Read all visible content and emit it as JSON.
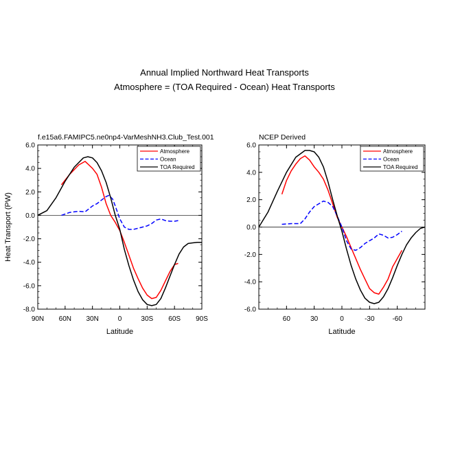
{
  "figure": {
    "title_line1": "Annual Implied Northward Heat Transports",
    "title_line2": "Atmosphere = (TOA Required - Ocean) Heat Transports"
  },
  "chart_data": [
    {
      "type": "line",
      "title": "f.e15a6.FAMIPC5.ne0np4-VarMeshNH3.Club_Test.001",
      "xlabel": "Latitude",
      "ylabel": "Heat Transport (PW)",
      "xlim": [
        90,
        -90
      ],
      "ylim": [
        -8,
        6
      ],
      "xticks": [
        90,
        60,
        30,
        0,
        -30,
        -60,
        -90
      ],
      "xtick_labels": [
        "90N",
        "60N",
        "30N",
        "0",
        "30S",
        "60S",
        "90S"
      ],
      "yticks": [
        -8,
        -6,
        -4,
        -2,
        0,
        2,
        4,
        6
      ],
      "ytick_labels": [
        "-8.0",
        "-6.0",
        "-4.0",
        "-2.0",
        "0.0",
        "2.0",
        "4.0",
        "6.0"
      ],
      "legend_position": "top-right",
      "series": [
        {
          "name": "Atmosphere",
          "color": "#ff0000",
          "dash": "solid",
          "x": [
            64,
            55,
            45,
            38,
            30,
            25,
            20,
            15,
            10,
            5,
            0,
            -5,
            -10,
            -15,
            -20,
            -25,
            -30,
            -35,
            -40,
            -45,
            -50,
            -55,
            -60,
            -64
          ],
          "y": [
            2.6,
            3.5,
            4.3,
            4.6,
            4.0,
            3.5,
            2.4,
            1.0,
            0.0,
            -0.6,
            -1.3,
            -2.3,
            -3.4,
            -4.5,
            -5.4,
            -6.2,
            -6.8,
            -7.1,
            -7.0,
            -6.4,
            -5.6,
            -4.8,
            -4.2,
            -4.1
          ]
        },
        {
          "name": "Ocean",
          "color": "#0000ff",
          "dash": "dashed",
          "x": [
            64,
            55,
            45,
            38,
            30,
            25,
            20,
            15,
            12,
            8,
            5,
            0,
            -5,
            -10,
            -15,
            -20,
            -25,
            -30,
            -35,
            -40,
            -45,
            -50,
            -55,
            -60,
            -64
          ],
          "y": [
            0.0,
            0.25,
            0.35,
            0.3,
            0.8,
            1.0,
            1.3,
            1.6,
            1.7,
            1.4,
            0.8,
            -0.3,
            -1.0,
            -1.2,
            -1.2,
            -1.1,
            -1.0,
            -0.9,
            -0.7,
            -0.4,
            -0.3,
            -0.45,
            -0.5,
            -0.5,
            -0.45
          ]
        },
        {
          "name": "TOA Required",
          "color": "#000000",
          "dash": "solid",
          "x": [
            90,
            80,
            70,
            60,
            50,
            40,
            35,
            30,
            25,
            20,
            15,
            10,
            5,
            0,
            -5,
            -10,
            -15,
            -20,
            -25,
            -30,
            -35,
            -40,
            -45,
            -50,
            -55,
            -60,
            -65,
            -70,
            -75,
            -80,
            -85,
            -90
          ],
          "y": [
            0.0,
            0.4,
            1.5,
            2.9,
            4.1,
            4.9,
            5.0,
            4.9,
            4.5,
            3.8,
            2.8,
            1.5,
            0.0,
            -1.2,
            -2.9,
            -4.3,
            -5.5,
            -6.5,
            -7.2,
            -7.6,
            -7.7,
            -7.6,
            -7.1,
            -6.2,
            -5.2,
            -4.2,
            -3.3,
            -2.7,
            -2.4,
            -2.35,
            -2.3,
            -2.3
          ]
        }
      ]
    },
    {
      "type": "line",
      "title": "NCEP Derived",
      "xlabel": "Latitude",
      "ylabel": "",
      "xlim": [
        90,
        -90
      ],
      "ylim": [
        -6,
        6
      ],
      "xticks": [
        60,
        30,
        0,
        -30,
        -60
      ],
      "xtick_labels": [
        "60",
        "30",
        "0",
        "-30",
        "-60"
      ],
      "yticks": [
        -6,
        -4,
        -2,
        0,
        2,
        4,
        6
      ],
      "ytick_labels": [
        "-6.0",
        "-4.0",
        "-2.0",
        "0.0",
        "2.0",
        "4.0",
        "6.0"
      ],
      "legend_position": "top-right",
      "series": [
        {
          "name": "Atmosphere",
          "color": "#ff0000",
          "dash": "solid",
          "x": [
            65,
            60,
            55,
            50,
            45,
            40,
            35,
            30,
            25,
            20,
            15,
            10,
            5,
            0,
            -5,
            -10,
            -15,
            -20,
            -25,
            -30,
            -35,
            -40,
            -45,
            -50,
            -55,
            -60,
            -65
          ],
          "y": [
            2.4,
            3.4,
            4.1,
            4.6,
            5.0,
            5.2,
            4.9,
            4.4,
            4.0,
            3.5,
            2.7,
            1.7,
            0.7,
            0.0,
            -0.7,
            -1.5,
            -2.3,
            -3.1,
            -3.8,
            -4.5,
            -4.8,
            -4.9,
            -4.4,
            -3.8,
            -2.9,
            -2.3,
            -1.7
          ]
        },
        {
          "name": "Ocean",
          "color": "#0000ff",
          "dash": "dashed",
          "x": [
            65,
            55,
            45,
            40,
            35,
            30,
            25,
            20,
            15,
            10,
            5,
            0,
            -5,
            -10,
            -15,
            -20,
            -25,
            -30,
            -35,
            -40,
            -45,
            -50,
            -55,
            -60,
            -65
          ],
          "y": [
            0.2,
            0.25,
            0.25,
            0.6,
            1.1,
            1.5,
            1.7,
            1.9,
            1.8,
            1.5,
            0.8,
            0.0,
            -1.0,
            -1.6,
            -1.7,
            -1.5,
            -1.2,
            -1.0,
            -0.8,
            -0.5,
            -0.6,
            -0.8,
            -0.75,
            -0.55,
            -0.3
          ]
        },
        {
          "name": "TOA Required",
          "color": "#000000",
          "dash": "solid",
          "x": [
            90,
            80,
            70,
            60,
            50,
            40,
            35,
            30,
            25,
            20,
            15,
            10,
            5,
            0,
            -5,
            -10,
            -15,
            -20,
            -25,
            -30,
            -35,
            -40,
            -45,
            -50,
            -55,
            -60,
            -65,
            -70,
            -75,
            -80,
            -85,
            -90
          ],
          "y": [
            0.0,
            1.1,
            2.6,
            4.0,
            5.1,
            5.6,
            5.6,
            5.5,
            5.1,
            4.4,
            3.3,
            2.0,
            0.8,
            -0.3,
            -1.6,
            -2.8,
            -3.8,
            -4.6,
            -5.2,
            -5.5,
            -5.6,
            -5.5,
            -5.1,
            -4.5,
            -3.7,
            -2.8,
            -2.0,
            -1.3,
            -0.8,
            -0.4,
            -0.1,
            0.0
          ]
        }
      ]
    }
  ]
}
